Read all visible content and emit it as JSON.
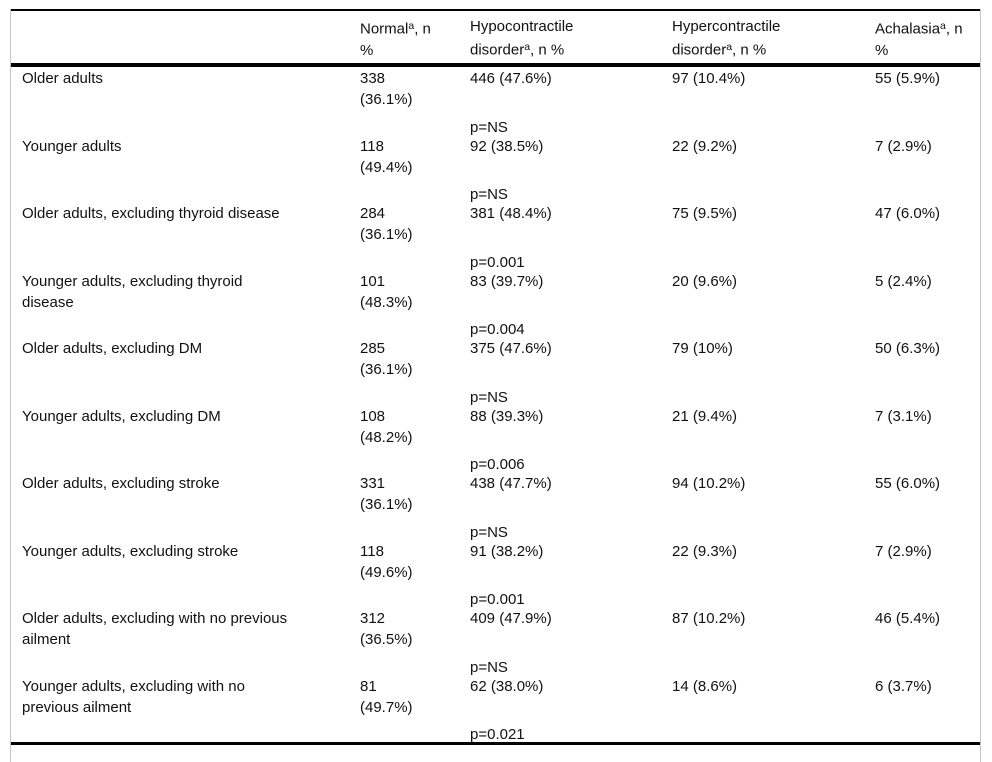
{
  "table": {
    "columns": [
      {
        "id": "row-header",
        "lines": []
      },
      {
        "id": "normal",
        "lines": [
          [
            {
              "t": "Normal"
            },
            {
              "t": "a",
              "sup": true
            },
            {
              "t": ", n"
            }
          ],
          [
            {
              "t": "%"
            }
          ]
        ]
      },
      {
        "id": "hypocontractile",
        "lines": [
          [
            {
              "t": "Hypocontractile"
            }
          ],
          [
            {
              "t": "disorder"
            },
            {
              "t": "a",
              "sup": true
            },
            {
              "t": ", n %"
            }
          ]
        ]
      },
      {
        "id": "hypercontractile",
        "lines": [
          [
            {
              "t": "Hypercontractile"
            }
          ],
          [
            {
              "t": "disorder"
            },
            {
              "t": "a",
              "sup": true
            },
            {
              "t": ", n %"
            }
          ]
        ]
      },
      {
        "id": "achalasia",
        "lines": [
          [
            {
              "t": "Achalasia"
            },
            {
              "t": "a",
              "sup": true
            },
            {
              "t": ", n"
            }
          ],
          [
            {
              "t": "%"
            }
          ]
        ]
      }
    ],
    "rows": [
      {
        "label_lines": [
          "Older adults"
        ],
        "normal_n": "338",
        "normal_pct": "(36.1%)",
        "hypocontractile": "446 (47.6%)",
        "hypercontractile": "97 (10.4%)",
        "achalasia": "55 (5.9%)",
        "p_value": "p=NS"
      },
      {
        "label_lines": [
          "Younger adults"
        ],
        "normal_n": "118",
        "normal_pct": "(49.4%)",
        "hypocontractile": "92 (38.5%)",
        "hypercontractile": "22 (9.2%)",
        "achalasia": "7 (2.9%)",
        "p_value": "p=NS"
      },
      {
        "label_lines": [
          "Older adults, excluding thyroid disease"
        ],
        "normal_n": "284",
        "normal_pct": "(36.1%)",
        "hypocontractile": "381 (48.4%)",
        "hypercontractile": "75 (9.5%)",
        "achalasia": "47 (6.0%)",
        "p_value": "p=0.001"
      },
      {
        "label_lines": [
          "Younger adults, excluding thyroid",
          "disease"
        ],
        "normal_n": "101",
        "normal_pct": "(48.3%)",
        "hypocontractile": "83 (39.7%)",
        "hypercontractile": "20 (9.6%)",
        "achalasia": "5 (2.4%)",
        "p_value": "p=0.004"
      },
      {
        "label_lines": [
          "Older adults, excluding DM"
        ],
        "normal_n": "285",
        "normal_pct": "(36.1%)",
        "hypocontractile": "375 (47.6%)",
        "hypercontractile": "79 (10%)",
        "achalasia": "50 (6.3%)",
        "p_value": "p=NS"
      },
      {
        "label_lines": [
          "Younger adults, excluding DM"
        ],
        "normal_n": "108",
        "normal_pct": "(48.2%)",
        "hypocontractile": "88 (39.3%)",
        "hypercontractile": "21 (9.4%)",
        "achalasia": "7 (3.1%)",
        "p_value": "p=0.006"
      },
      {
        "label_lines": [
          "Older adults, excluding stroke"
        ],
        "normal_n": "331",
        "normal_pct": "(36.1%)",
        "hypocontractile": "438 (47.7%)",
        "hypercontractile": "94 (10.2%)",
        "achalasia": "55 (6.0%)",
        "p_value": "p=NS"
      },
      {
        "label_lines": [
          "Younger adults, excluding stroke"
        ],
        "normal_n": "118",
        "normal_pct": "(49.6%)",
        "hypocontractile": "91 (38.2%)",
        "hypercontractile": "22 (9.3%)",
        "achalasia": "7 (2.9%)",
        "p_value": "p=0.001"
      },
      {
        "label_lines": [
          "Older adults, excluding with no previous",
          "ailment"
        ],
        "normal_n": "312",
        "normal_pct": "(36.5%)",
        "hypocontractile": "409 (47.9%)",
        "hypercontractile": "87 (10.2%)",
        "achalasia": "46 (5.4%)",
        "p_value": "p=NS"
      },
      {
        "label_lines": [
          "Younger adults, excluding with no",
          "previous ailment"
        ],
        "normal_n": "81",
        "normal_pct": "(49.7%)",
        "hypocontractile": "62 (38.0%)",
        "hypercontractile": "14 (8.6%)",
        "achalasia": "6 (3.7%)",
        "p_value": "p=0.021"
      }
    ]
  },
  "colors": {
    "rule": "#000000",
    "frame_border": "#c4c4c4",
    "text": "#111111",
    "background": "#ffffff"
  }
}
